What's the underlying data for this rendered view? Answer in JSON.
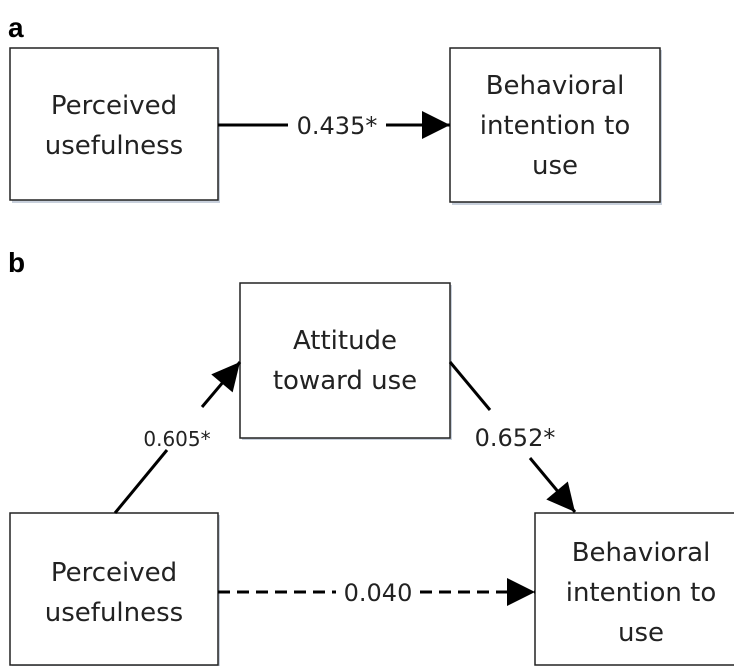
{
  "panels": [
    {
      "label": "a",
      "nodes": [
        {
          "lines": [
            "Perceived",
            "usefulness"
          ]
        },
        {
          "lines": [
            "Behavioral",
            "intention to",
            "use"
          ]
        }
      ],
      "edges": [
        {
          "label": "0.435*"
        }
      ]
    },
    {
      "label": "b",
      "nodes": [
        {
          "lines": [
            "Attitude",
            "toward use"
          ]
        },
        {
          "lines": [
            "Perceived",
            "usefulness"
          ]
        },
        {
          "lines": [
            "Behavioral",
            "intention to",
            "use"
          ]
        }
      ],
      "edges": [
        {
          "label": "0.605*"
        },
        {
          "label": "0.652*"
        },
        {
          "label": "0.040"
        }
      ]
    }
  ]
}
